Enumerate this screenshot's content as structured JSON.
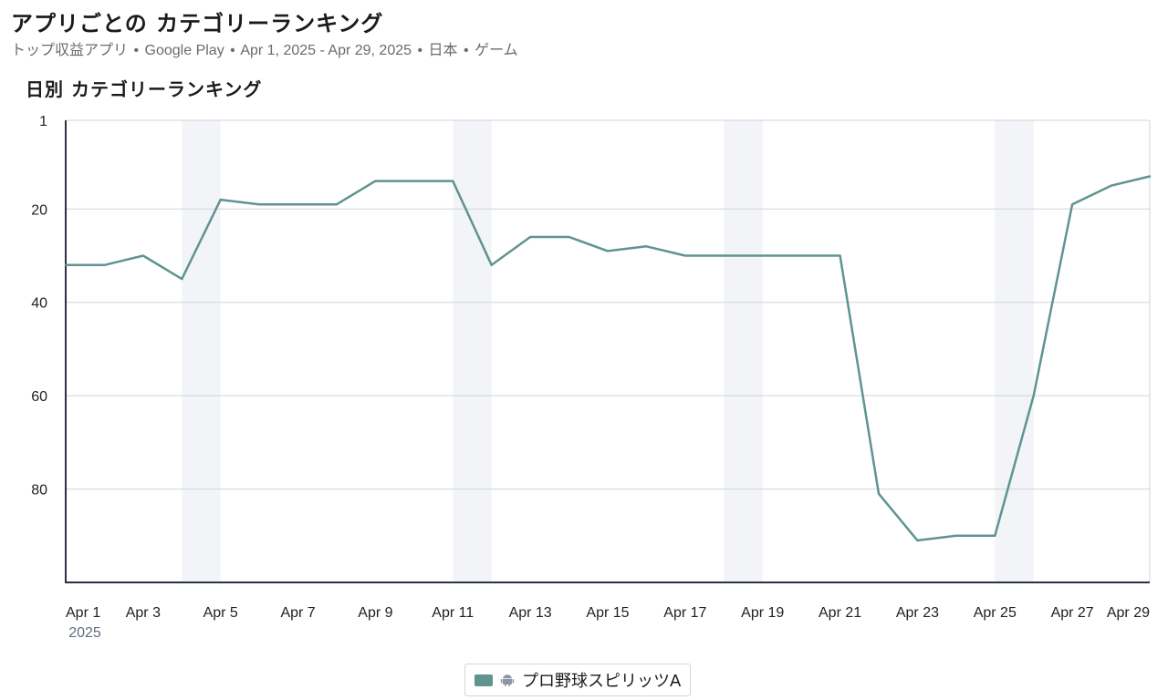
{
  "header": {
    "title": "アプリごとの カテゴリーランキング",
    "subtitle_parts": [
      "トップ収益アプリ",
      "Google Play",
      "Apr 1, 2025 - Apr 29, 2025",
      "日本",
      "ゲーム"
    ],
    "separator": "•"
  },
  "chart_title": "日別 カテゴリーランキング",
  "colors": {
    "series": "#5f9490",
    "weekend_band": "#f2f4f7",
    "grid": "#cfd3da",
    "axis": "#2a3142"
  },
  "chart_data": {
    "type": "line",
    "title": "日別 カテゴリーランキング",
    "x_tick_labels": [
      "Apr 1",
      "Apr 3",
      "Apr 5",
      "Apr 7",
      "Apr 9",
      "Apr 11",
      "Apr 13",
      "Apr 15",
      "Apr 17",
      "Apr 19",
      "Apr 21",
      "Apr 23",
      "Apr 25",
      "Apr 27",
      "Apr 29"
    ],
    "x_year_label": "2025",
    "y_tick_labels": [
      "1",
      "20",
      "40",
      "60",
      "80"
    ],
    "y_ticks": [
      1,
      20,
      40,
      60,
      80
    ],
    "ylim": [
      1,
      100
    ],
    "y_inverted": true,
    "grid": true,
    "weekend_bands": [
      [
        "Apr 4",
        "Apr 5"
      ],
      [
        "Apr 11",
        "Apr 12"
      ],
      [
        "Apr 18",
        "Apr 19"
      ],
      [
        "Apr 25",
        "Apr 26"
      ]
    ],
    "x": [
      "Apr 1",
      "Apr 2",
      "Apr 3",
      "Apr 4",
      "Apr 5",
      "Apr 6",
      "Apr 7",
      "Apr 8",
      "Apr 9",
      "Apr 10",
      "Apr 11",
      "Apr 12",
      "Apr 13",
      "Apr 14",
      "Apr 15",
      "Apr 16",
      "Apr 17",
      "Apr 18",
      "Apr 19",
      "Apr 20",
      "Apr 21",
      "Apr 22",
      "Apr 23",
      "Apr 24",
      "Apr 25",
      "Apr 26",
      "Apr 27",
      "Apr 28",
      "Apr 29"
    ],
    "series": [
      {
        "name": "プロ野球スピリッツA",
        "platform_icon": "android-icon",
        "values": [
          32,
          32,
          30,
          35,
          18,
          19,
          19,
          19,
          14,
          14,
          14,
          32,
          26,
          26,
          29,
          28,
          30,
          30,
          30,
          30,
          30,
          81,
          91,
          90,
          90,
          60,
          19,
          15,
          13
        ]
      }
    ],
    "legend_position": "bottom-center"
  }
}
